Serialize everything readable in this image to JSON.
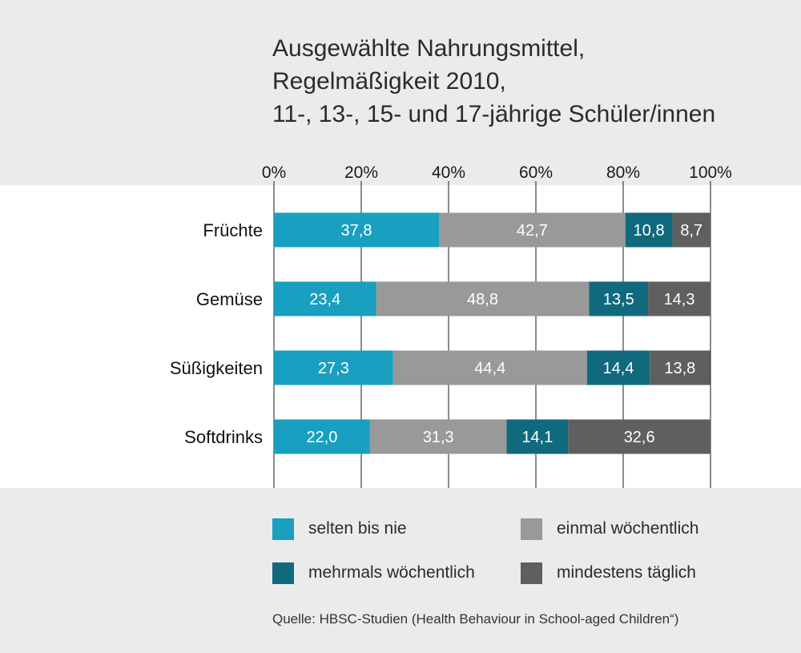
{
  "chart_data": {
    "type": "bar",
    "orientation": "horizontal",
    "stacked": true,
    "title_lines": [
      "Ausgewählte Nahrungsmittel,",
      "Regelmäßigkeit 2010,",
      "11-, 13-, 15- und 17-jährige Schüler/innen"
    ],
    "categories": [
      "Früchte",
      "Gemüse",
      "Süßigkeiten",
      "Softdrinks"
    ],
    "x_ticks": [
      "0%",
      "20%",
      "40%",
      "60%",
      "80%",
      "100%"
    ],
    "xlim": [
      0,
      100
    ],
    "grid": true,
    "legend_position": "bottom",
    "series": [
      {
        "name": "selten bis nie",
        "color": "#199fbf",
        "values": [
          37.8,
          23.4,
          27.3,
          22.0
        ],
        "labels": [
          "37,8",
          "23,4",
          "27,3",
          "22,0"
        ]
      },
      {
        "name": "einmal wöchentlich",
        "color": "#999999",
        "values": [
          42.7,
          48.8,
          44.4,
          31.3
        ],
        "labels": [
          "42,7",
          "48,8",
          "44,4",
          "31,3"
        ]
      },
      {
        "name": "mehrmals wöchentlich",
        "color": "#11697d",
        "values": [
          10.8,
          13.5,
          14.4,
          14.1
        ],
        "labels": [
          "10,8",
          "13,5",
          "14,4",
          "14,1"
        ]
      },
      {
        "name": "mindestens täglich",
        "color": "#5f5f5f",
        "values": [
          8.7,
          14.3,
          13.8,
          32.6
        ],
        "labels": [
          "8,7",
          "14,3",
          "13,8",
          "32,6"
        ]
      }
    ],
    "source": "Quelle: HBSC-Studien (Health Behaviour in School-aged Children“)"
  }
}
